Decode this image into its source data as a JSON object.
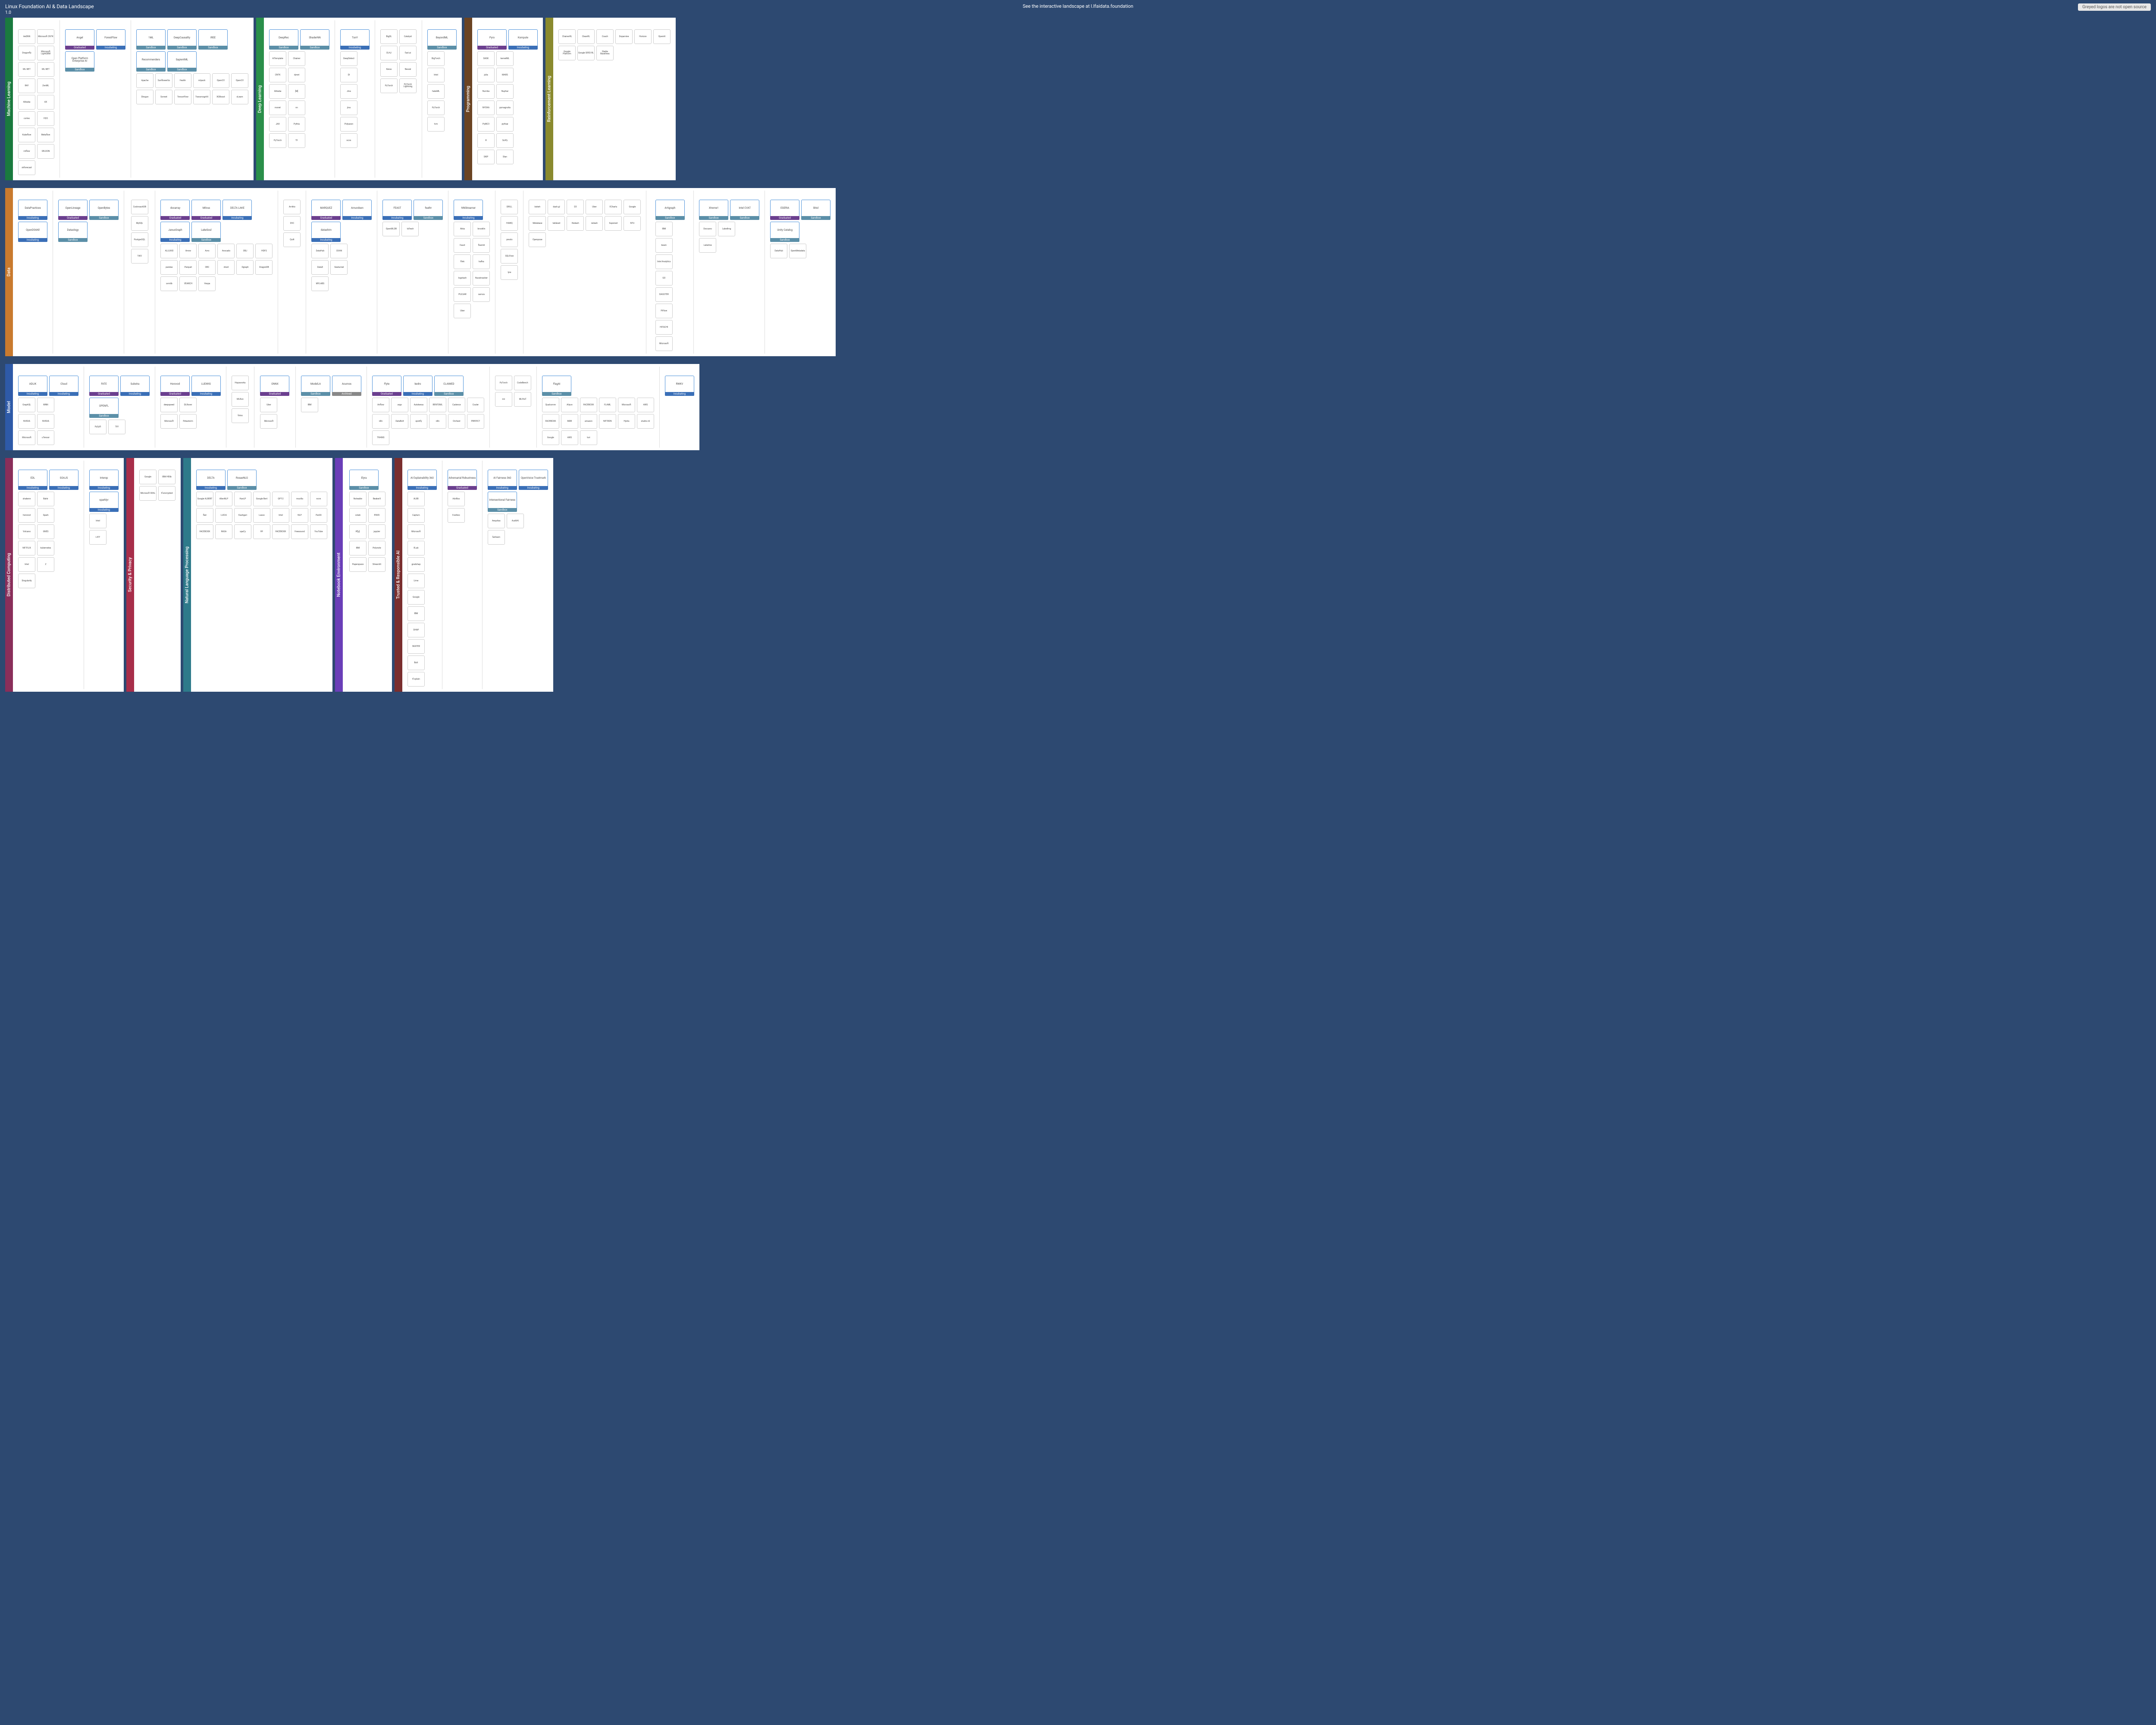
{
  "header": {
    "title": "Linux Foundation AI & Data Landscape",
    "version": "1.0",
    "subtitle": "See the interactive landscape at l.lfaidata.foundation",
    "note": "Greyed logos are not open source"
  },
  "badges": {
    "graduated": "Graduated",
    "incubating": "Incubating",
    "sandbox": "Sandbox",
    "archived": "Archived"
  },
  "domains": {
    "ml": {
      "label": "Machine Learning",
      "color": "#1a7a3e",
      "cats": {
        "framework": {
          "title": "Framework",
          "big": [],
          "items": [
            "AeDNN",
            "Microsoft CNTK",
            "Dragonfly",
            "Microsoft LightGBM",
            "ML.NET",
            "ML.NET",
            "RAY",
            "ZenML",
            "Alibaba",
            "AX",
            "cortex",
            "H2O",
            "Kubeflow",
            "Metaflow",
            "mlflow",
            "SELDON",
            "skforecast"
          ]
        },
        "platform": {
          "title": "Platform",
          "big": [
            {
              "n": "Angel",
              "b": "graduated"
            },
            {
              "n": "ForestFlow",
              "b": "incubating"
            },
            {
              "n": "Open Platform Enterprise AI",
              "b": "sandbox"
            }
          ],
          "items": []
        },
        "library": {
          "title": "Library",
          "big": [
            {
              "n": "1ML",
              "b": "sandbox"
            },
            {
              "n": "DeepCausality",
              "b": "sandbox"
            },
            {
              "n": "IREE",
              "b": "sandbox"
            },
            {
              "n": "Recommenders",
              "b": "sandbox"
            },
            {
              "n": "SapientML",
              "b": "sandbox"
            }
          ],
          "items": [
            "Apache",
            "SunflowerGo",
            "Feathr",
            "mlpack",
            "OpenCV",
            "OpenCV",
            "Shogun",
            "Sonnet",
            "TensorFlow",
            "TransmogriAI",
            "XGBoost",
            "xLearn"
          ]
        }
      }
    },
    "dl": {
      "label": "Deep Learning",
      "color": "#2a8f4a",
      "cats": {
        "framework": {
          "title": "Framework",
          "big": [
            {
              "n": "DeepRec",
              "b": "sandbox"
            },
            {
              "n": "ShaderNN",
              "b": "sandbox"
            }
          ],
          "items": [
            "AITemplate",
            "Chainer",
            "CNTK",
            "dynet",
            "Alibaba",
            "[M]",
            "mxnet",
            "nn",
            "JAX",
            "Pythia",
            "PyTorch",
            "TF"
          ]
        },
        "platform": {
          "title": "Platform",
          "big": [
            {
              "n": "TonY",
              "b": "incubating"
            }
          ],
          "items": [
            "DeepDetect",
            "DI",
            "Jina",
            "jina",
            "Polyaxon",
            "ncnn"
          ]
        },
        "library": {
          "title": "Library",
          "big": [],
          "items": [
            "BigDL",
            "Catalyst",
            "DL4J",
            "fast.ai",
            "Keras",
            "Neural",
            "PyTorch",
            "PyTorch Lightning"
          ]
        },
        "tool": {
          "title": "Tool",
          "big": [
            {
              "n": "BeyondML",
              "b": "sandbox"
            }
          ],
          "items": [
            "BigTorch",
            "Intel",
            "hakeML",
            "PyTorch",
            "tvm"
          ]
        }
      }
    },
    "prog": {
      "label": "Programming",
      "color": "#6b4423",
      "cats": {
        "programming": {
          "title": "Programming",
          "big": [
            {
              "n": "Pyro",
              "b": "graduated"
            },
            {
              "n": "Kompute",
              "b": "incubating"
            }
          ],
          "items": [
            "DASK",
            "kernelML",
            "julia",
            "MARS",
            "Numba",
            "Nuphar",
            "NYOKA",
            "pymagnolia",
            "PyMC3",
            "pythae",
            "R",
            "SciPy",
            "SKIP",
            "Stan"
          ]
        }
      }
    },
    "rl": {
      "label": "Reinforcement Learning",
      "color": "#8a8a2e",
      "cats": {
        "rl": {
          "title": "Reinforcement Learning",
          "big": [],
          "items": [
            "ChainerRL",
            "CleanRL",
            "Coach",
            "Dopamine",
            "Horizon",
            "OpenAI",
            "Google Platform",
            "Google SEED RL",
            "Stable Baselines"
          ]
        }
      }
    },
    "data": {
      "label": "Data",
      "color": "#c97a2e",
      "cats": {
        "education": {
          "title": "Education",
          "big": [
            {
              "n": "DataPractices",
              "b": "incubating"
            },
            {
              "n": "OpenDS4All",
              "b": "incubating"
            }
          ],
          "items": []
        },
        "lineage": {
          "title": "Lineage",
          "big": [
            {
              "n": "OpenLineage",
              "b": "graduated"
            },
            {
              "n": "OpenBytes",
              "b": "sandbox"
            },
            {
              "n": "Dataology",
              "b": "sandbox"
            }
          ],
          "items": []
        },
        "reldb": {
          "title": "Relational DB",
          "big": [],
          "items": [
            "CockroachDB",
            "MySQL",
            "PostgreSQL",
            "TiKV"
          ]
        },
        "store": {
          "title": "Store & Format",
          "big": [
            {
              "n": "docarray",
              "b": "graduated"
            },
            {
              "n": "Milvus",
              "b": "graduated"
            },
            {
              "n": "DELTA LAKE",
              "b": "incubating"
            },
            {
              "n": "JanusGraph",
              "b": "incubating"
            },
            {
              "n": "LakeSoul",
              "b": "sandbox"
            }
          ],
          "items": [
            "ALLUXIO",
            "Arrow",
            "Avro",
            "Avocado",
            "OBJ",
            "HDFS",
            "pandas",
            "Parquet",
            "ORC",
            "druid",
            "Dgraph",
            "DragonDB",
            "svmlib",
            "VEARCH",
            "Vespa"
          ]
        },
        "versioning": {
          "title": "Versioning",
          "big": [],
          "items": [
            "Arrikto",
            "DVC",
            "Quilt"
          ]
        },
        "operations": {
          "title": "Operations",
          "big": [
            {
              "n": "MARQUEZ",
              "b": "graduated"
            },
            {
              "n": "Amundsen",
              "b": "incubating"
            },
            {
              "n": "datashim",
              "b": "incubating"
            }
          ],
          "items": [
            "DataHub",
            "CKAN",
            "DataX",
            "Seatunnel",
            "MYLABS"
          ]
        },
        "feateng": {
          "title": "Feature Engineering",
          "big": [
            {
              "n": "FEAST",
              "b": "incubating"
            },
            {
              "n": "feathr",
              "b": "sandbox"
            }
          ],
          "items": [
            "OpenMLDB",
            "tsfresh"
          ]
        },
        "stream": {
          "title": "Stream Processing",
          "big": [
            {
              "n": "NNStreamer",
              "b": "incubating"
            }
          ],
          "items": [
            "Akka",
            "brooklin",
            "Faust",
            "fluentd",
            "flink",
            "kafka",
            "logstash",
            "Nussknacker",
            "PULSAR",
            "samza",
            "Uber"
          ]
        },
        "sqleng": {
          "title": "SQL Engine",
          "big": [],
          "items": [
            "DRILL",
            "HAWQ",
            "presto",
            "SQLFlow",
            "lyre"
          ]
        },
        "viz": {
          "title": "Visualization",
          "big": [],
          "items": [
            "bokeh",
            "dash.gl",
            "D3",
            "Uber",
            "ECharts",
            "Google",
            "Metabase",
            "tableset",
            "Redash",
            "redash",
            "Superset",
            "NTU",
            "Openpose"
          ]
        },
        "pipeline": {
          "title": "Pipeline Management",
          "big": [
            {
              "n": "Artigraph",
              "b": "sandbox"
            }
          ],
          "items": [
            "IBM",
            "beam",
            "Intel Analytics",
            "GO",
            "DAGSTER",
            "PiFlow",
            "HITACHI",
            "Microsoft"
          ]
        },
        "labeling": {
          "title": "Labeling & Annotation",
          "big": [
            {
              "n": "Xtreme1",
              "b": "sandbox"
            },
            {
              "n": "Intel CVAT",
              "b": "sandbox"
            }
          ],
          "items": [
            "Doccano",
            "LabelImg",
            "Labelme"
          ]
        },
        "governance": {
          "title": "Governance",
          "big": [
            {
              "n": "EGERIA",
              "b": "graduated"
            },
            {
              "n": "Bitol",
              "b": "sandbox"
            },
            {
              "n": "Unity Catalog",
              "b": "sandbox"
            }
          ],
          "items": [
            "DataHub",
            "OpenMetadata"
          ]
        }
      }
    },
    "model": {
      "label": "Model",
      "color": "#2e5aa8",
      "cats": {
        "inference": {
          "title": "Inference",
          "big": [
            {
              "n": "ADLIK",
              "b": "incubating"
            },
            {
              "n": "Cloud",
              "b": "incubating"
            }
          ],
          "items": [
            "GraphQL",
            "MNN",
            "NVIDIA",
            "NVIDIA",
            "Microsoft",
            "uTensor"
          ]
        },
        "fedlearn": {
          "title": "Federated Learning",
          "big": [
            {
              "n": "FATE",
              "b": "graduated"
            },
            {
              "n": "Substra",
              "b": "incubating"
            },
            {
              "n": "OPENFL",
              "b": "sandbox"
            }
          ],
          "items": [
            "PySyft",
            "TFF"
          ]
        },
        "training": {
          "title": "Training",
          "big": [
            {
              "n": "Horovod",
              "b": "graduated"
            },
            {
              "n": "LUDWIG",
              "b": "incubating"
            }
          ],
          "items": [
            "deepspeed",
            "DLRover",
            "Microsoft",
            "Petastorm"
          ]
        },
        "parameter": {
          "title": "Parameter",
          "big": [],
          "items": [
            "Hopsworks",
            "MLRun",
            "fotos"
          ]
        },
        "format": {
          "title": "Format & Interface",
          "big": [
            {
              "n": "ONNX",
              "b": "graduated"
            }
          ],
          "items": [
            "Uber",
            "Microsoft"
          ]
        },
        "market": {
          "title": "Marketplace",
          "big": [
            {
              "n": "ModelLA",
              "b": "sandbox"
            },
            {
              "n": "Acumos",
              "b": "archived"
            }
          ],
          "items": [
            "IBM"
          ]
        },
        "workflow": {
          "title": "Workflow",
          "big": [
            {
              "n": "Flyte",
              "b": "graduated"
            },
            {
              "n": "kedro",
              "b": "incubating"
            },
            {
              "n": "CLAIMED",
              "b": "sandbox"
            }
          ],
          "items": [
            "Airflow",
            "argo",
            "Autokeras",
            "BENTOML",
            "Cadence",
            "Couler",
            "n8n",
            "DataBolt",
            "spotify",
            "n8n",
            "Orchest",
            "PREFECT",
            "TRAINS"
          ]
        },
        "benchmark": {
          "title": "Benchmarking",
          "big": [],
          "items": [
            "PyTorch",
            "CodeBench",
            "nni",
            "MLPerf"
          ]
        },
        "tool": {
          "title": "Tool",
          "big": [
            {
              "n": "FlagAI",
              "b": "sandbox"
            }
          ],
          "items": [
            "Qualcomm",
            "Aliyun",
            "FACEBOOK",
            "FLAML",
            "Microsoft",
            "AWS",
            "FACEBOOK",
            "MDB",
            "amazon",
            "NETRON",
            "Hydra",
            "studio.ml",
            "Google",
            "AWS",
            "turi"
          ]
        },
        "data": {
          "title": "Data",
          "big": [
            {
              "n": "RWKV",
              "b": "incubating"
            }
          ],
          "items": []
        }
      }
    },
    "dist": {
      "label": "Distributed Computing",
      "color": "#8a2e5a",
      "cats": {
        "compmgmt": {
          "title": "Computing & Management",
          "big": [
            {
              "n": "EDL",
              "b": "incubating"
            },
            {
              "n": "SOAJS",
              "b": "incubating"
            }
          ],
          "items": [
            "shakenn",
            "Bahir",
            "horovod",
            "Spark",
            "Volcano",
            "GNES",
            "NETFLIX",
            "kubernetes",
            "Intel",
            "Z",
            "Singularity"
          ]
        },
        "interface": {
          "title": "Interface",
          "big": [
            {
              "n": "Interop",
              "b": "incubating"
            },
            {
              "n": "sparklyr",
              "b": "incubating"
            }
          ],
          "items": [
            "Intel",
            "LIVY"
          ]
        }
      }
    },
    "sec": {
      "label": "Security & Privacy",
      "color": "#a82e4a",
      "cats": {
        "sec": {
          "title": "Security & Privacy",
          "big": [],
          "items": [
            "Google",
            "IBM HElib",
            "Microsoft SEAL",
            "tf-encrypted"
          ]
        }
      }
    },
    "nlp": {
      "label": "Natural Language Processing",
      "color": "#2e7a8a",
      "cats": {
        "nlp": {
          "title": "Natural Language Processing",
          "big": [
            {
              "n": "DELTA",
              "b": "incubating"
            },
            {
              "n": "RosaeNLG",
              "b": "sandbox"
            }
          ],
          "items": [
            "Google ALBERT",
            "AllenNLP",
            "HanLP",
            "Google Bert",
            "GPT-2",
            "mozilla",
            "ncnn",
            "flair",
            "LUCIA",
            "Kashgari",
            "Lasso",
            "Intel",
            "NLP",
            "ParlAI",
            "FACEBOOK",
            "RASA",
            "spaCy",
            "HF",
            "FACEBOOK",
            "Freesound",
            "YouTube"
          ]
        }
      }
    },
    "nb": {
      "label": "Notebook Environment",
      "color": "#6a3eb8",
      "cats": {
        "nb": {
          "title": "Notebook Environment",
          "big": [
            {
              "n": "Elyra",
              "b": "sandbox"
            }
          ],
          "items": [
            "Noteable",
            "BeakerX",
            "colab",
            "ENVD",
            "IP[y]:",
            "jupyter",
            "IBM",
            "Polynote",
            "Paperspace",
            "Streamlit"
          ]
        }
      }
    },
    "trust": {
      "label": "Trusted & Responsible AI",
      "color": "#7a2e2e",
      "cats": {
        "explain": {
          "title": "Explainability",
          "big": [
            {
              "n": "AI Explainability 360",
              "b": "incubating"
            }
          ],
          "items": [
            "ALIBI",
            "Captum",
            "Microsoft",
            "ELab",
            "gradshap",
            "Lime",
            "Google",
            "IBM",
            "SHAP",
            "SKATER",
            "Bolt",
            "tf-xplain"
          ]
        },
        "adversarial": {
          "title": "Adversarial",
          "big": [
            {
              "n": "Adversarial Robustness",
              "b": "graduated"
            }
          ],
          "items": [
            "AdvBox",
            "Foolbox"
          ]
        },
        "bias": {
          "title": "Bias & Fairness",
          "big": [
            {
              "n": "AI Fairness 360",
              "b": "incubating"
            },
            {
              "n": "OpenVoice Trustmark",
              "b": "incubating"
            },
            {
              "n": "Intersectional Fairness",
              "b": "sandbox"
            }
          ],
          "items": [
            "Aequitas",
            "AuditAI",
            "fairlearn"
          ]
        }
      }
    }
  }
}
